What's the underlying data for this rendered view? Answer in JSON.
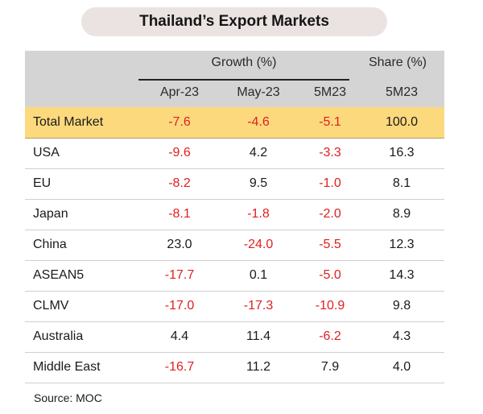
{
  "title": "Thailand’s Export Markets",
  "header": {
    "growth_group": "Growth (%)",
    "share_group": "Share (%)",
    "col_apr": "Apr-23",
    "col_may": "May-23",
    "col_5m_growth": "5M23",
    "col_5m_share": "5M23"
  },
  "rows": [
    {
      "label": "Total Market",
      "apr": "-7.6",
      "may": "-4.6",
      "g5m": "-5.1",
      "share": "100.0"
    },
    {
      "label": "USA",
      "apr": "-9.6",
      "may": "4.2",
      "g5m": "-3.3",
      "share": "16.3"
    },
    {
      "label": "EU",
      "apr": "-8.2",
      "may": "9.5",
      "g5m": "-1.0",
      "share": "8.1"
    },
    {
      "label": "Japan",
      "apr": "-8.1",
      "may": "-1.8",
      "g5m": "-2.0",
      "share": "8.9"
    },
    {
      "label": "China",
      "apr": "23.0",
      "may": "-24.0",
      "g5m": "-5.5",
      "share": "12.3"
    },
    {
      "label": "ASEAN5",
      "apr": "-17.7",
      "may": "0.1",
      "g5m": "-5.0",
      "share": "14.3"
    },
    {
      "label": "CLMV",
      "apr": "-17.0",
      "may": "-17.3",
      "g5m": "-10.9",
      "share": "9.8"
    },
    {
      "label": "Australia",
      "apr": "4.4",
      "may": "11.4",
      "g5m": "-6.2",
      "share": "4.3"
    },
    {
      "label": "Middle East",
      "apr": "-16.7",
      "may": "11.2",
      "g5m": "7.9",
      "share": "4.0"
    }
  ],
  "source": "Source: MOC",
  "colors": {
    "negative": "#e02020",
    "total_highlight": "#fcd97d",
    "header_bg": "#d4d4d4",
    "title_pill": "#ebe3e2"
  }
}
